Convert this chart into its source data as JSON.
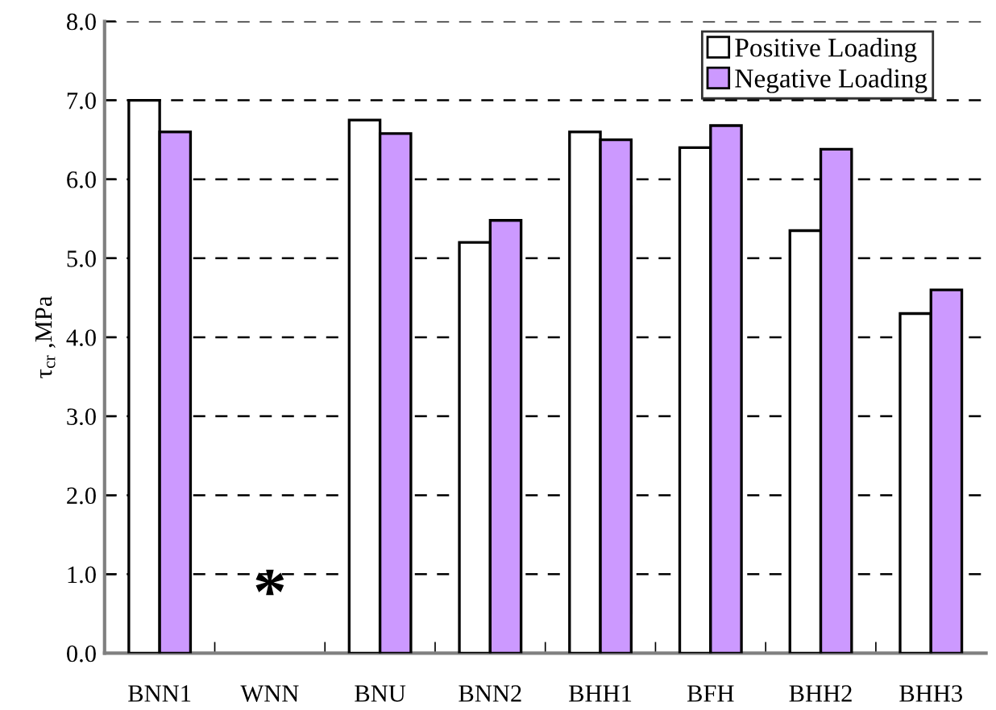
{
  "chart_data": {
    "type": "bar",
    "ylabel": "τ$_{cr}$ ,MPa",
    "categories": [
      "BNN1",
      "WNN",
      "BNU",
      "BNN2",
      "BHH1",
      "BFH",
      "BHH2",
      "BHH3"
    ],
    "series": [
      {
        "name": "Positive Loading",
        "color": "#ffffff",
        "values": [
          7.0,
          null,
          6.75,
          5.2,
          6.6,
          6.4,
          5.35,
          4.3
        ]
      },
      {
        "name": "Negative Loading",
        "color": "#cc99ff",
        "values": [
          6.6,
          null,
          6.58,
          5.48,
          6.5,
          6.68,
          6.38,
          4.6
        ]
      }
    ],
    "ylim": [
      0,
      8
    ],
    "yticks": [
      {
        "value": 0,
        "label": "0.0"
      },
      {
        "value": 1,
        "label": "1.0"
      },
      {
        "value": 2,
        "label": "2.0"
      },
      {
        "value": 3,
        "label": "3.0"
      },
      {
        "value": 4,
        "label": "4.0"
      },
      {
        "value": 5,
        "label": "5.0"
      },
      {
        "value": 6,
        "label": "6.0"
      },
      {
        "value": 7,
        "label": "7.0"
      },
      {
        "value": 8,
        "label": "8.0"
      }
    ],
    "grid": "y",
    "legend": "top right",
    "annotations": [
      "*"
    ]
  }
}
